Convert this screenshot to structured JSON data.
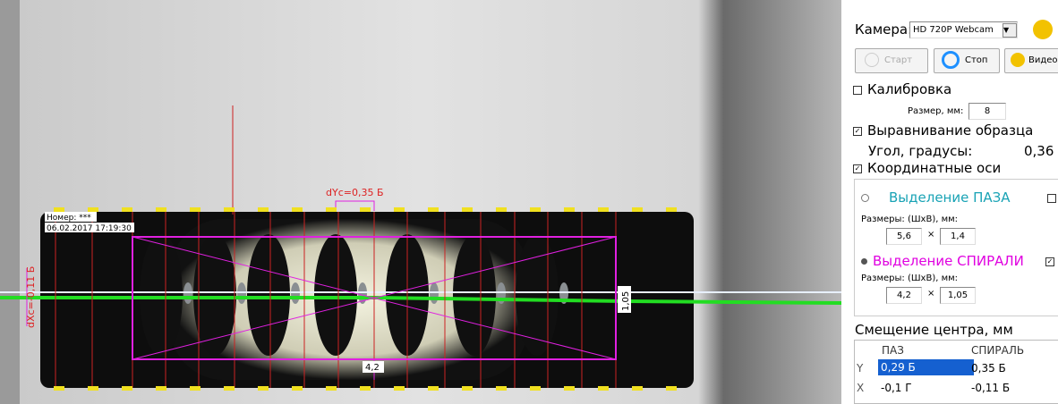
{
  "overlay": {
    "number_label": "Номер: ***",
    "timestamp": "06.02.2017 17:19:30",
    "dyc": "dYc=0,35 Б",
    "dxc": "dXc=-0,11 Б",
    "height": "1,05",
    "width": "4,2"
  },
  "panel": {
    "camera_label": "Камера:",
    "camera_value": "HD 720P Webcam",
    "buttons": [
      "Старт",
      "Стоп",
      "Видео"
    ],
    "calibration": {
      "label": "Калибровка",
      "size_label": "Размер, мм:",
      "size_value": "8"
    },
    "alignment": {
      "label": "Выравнивание образца",
      "angle_label": "Угол, градусы:",
      "angle_value": "0,36"
    },
    "axes": "Координатные оси",
    "times": "×",
    "slot": {
      "label": "Выделение ПАЗА",
      "size_label": "Размеры: (ШхВ), мм:",
      "w": "5,6",
      "h": "1,4"
    },
    "spiral": {
      "label": "Выделение СПИРАЛИ",
      "size_label": "Размеры: (ШхВ), мм:",
      "w": "4,2",
      "h": "1,05"
    },
    "offset": {
      "title": "Смещение центра, мм",
      "columns": [
        "ПАЗ",
        "СПИРАЛЬ"
      ],
      "rows": [
        [
          "Y",
          "0,29 Б",
          "0,35 Б"
        ],
        [
          "X",
          "-0,1 Г",
          "-0,11 Б"
        ]
      ]
    }
  }
}
